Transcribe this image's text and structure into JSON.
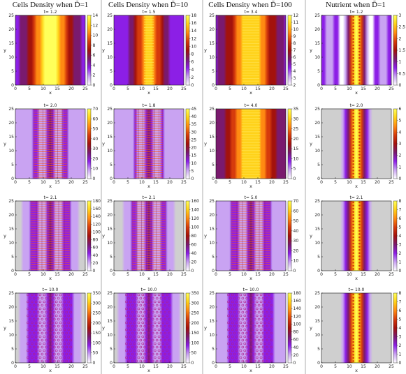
{
  "columns": [
    {
      "title": "Cells Density when D̃=1"
    },
    {
      "title": "Cells Density when D̃=10"
    },
    {
      "title": "Cells Density when D̃=100"
    },
    {
      "title": "Nutrient when D̃=1"
    }
  ],
  "colors": {
    "colormap": [
      "#ffffff",
      "#c9a3f2",
      "#8c1fe6",
      "#7a1a6e",
      "#a3120c",
      "#d63b0c",
      "#ff8a12",
      "#ffd21a",
      "#ffff5a"
    ],
    "background_gray": "#cfcfcf",
    "separator": "#9a9a9a"
  },
  "chart_data": [
    {
      "type": "heatmap",
      "col": 0,
      "row": 0,
      "time_label": "t= 1.2",
      "xlabel": "x",
      "ylabel": "y",
      "xlim": [
        0,
        25
      ],
      "ylim": [
        0,
        25
      ],
      "x_ticks": [
        0,
        5,
        10,
        15,
        20,
        25
      ],
      "y_ticks": [
        0,
        5,
        10,
        15,
        20,
        25
      ],
      "colorbar_ticks": [
        0,
        2,
        4,
        6,
        8,
        10,
        12,
        14
      ],
      "pattern": "smooth",
      "band_center": 12.5,
      "band_width": 4.8,
      "gray_background": false
    },
    {
      "type": "heatmap",
      "col": 1,
      "row": 0,
      "time_label": "t= 1.5",
      "xlabel": "x",
      "ylabel": "y",
      "xlim": [
        0,
        25
      ],
      "ylim": [
        0,
        25
      ],
      "x_ticks": [
        0,
        5,
        10,
        15,
        20,
        25
      ],
      "y_ticks": [
        0,
        5,
        10,
        15,
        20,
        25
      ],
      "colorbar_ticks": [
        0,
        2,
        4,
        6,
        8,
        10,
        12,
        14,
        16,
        18
      ],
      "pattern": "stripes",
      "band_center": 12.5,
      "band_width": 3.2,
      "gray_background": false
    },
    {
      "type": "heatmap",
      "col": 2,
      "row": 0,
      "time_label": "t= 3.4",
      "xlabel": "x",
      "ylabel": "y",
      "xlim": [
        0,
        25
      ],
      "ylim": [
        0,
        25
      ],
      "x_ticks": [
        0,
        5,
        10,
        15,
        20,
        25
      ],
      "y_ticks": [
        0,
        5,
        10,
        15,
        20,
        25
      ],
      "colorbar_ticks": [
        2,
        3,
        4,
        5,
        6,
        7,
        8,
        9,
        10,
        11,
        12
      ],
      "pattern": "stripes",
      "band_center": 12.5,
      "band_width": 5.5,
      "gray_background": false
    },
    {
      "type": "heatmap",
      "col": 3,
      "row": 0,
      "time_label": "t= 1.2",
      "xlabel": "x",
      "ylabel": "y",
      "xlim": [
        0,
        25
      ],
      "ylim": [
        0,
        25
      ],
      "x_ticks": [
        0,
        5,
        10,
        15,
        20,
        25
      ],
      "y_ticks": [
        0,
        5,
        10,
        15,
        20,
        25
      ],
      "colorbar_ticks": [
        0,
        0.5,
        1,
        1.5,
        2,
        2.5,
        3
      ],
      "pattern": "nutrient",
      "band_center": 12.5,
      "band_width": 2.0,
      "gray_background": false
    },
    {
      "type": "heatmap",
      "col": 0,
      "row": 1,
      "time_label": "t= 2.0",
      "xlabel": "x",
      "ylabel": "y",
      "xlim": [
        0,
        25
      ],
      "ylim": [
        0,
        25
      ],
      "x_ticks": [
        0,
        5,
        10,
        15,
        20,
        25
      ],
      "y_ticks": [
        0,
        5,
        10,
        15,
        20,
        25
      ],
      "colorbar_ticks": [
        0,
        10,
        20,
        30,
        40,
        50,
        60,
        70
      ],
      "pattern": "cells",
      "band_center": 12.5,
      "band_width": 6,
      "gray_background": false
    },
    {
      "type": "heatmap",
      "col": 1,
      "row": 1,
      "time_label": "t= 1.8",
      "xlabel": "x",
      "ylabel": "y",
      "xlim": [
        0,
        25
      ],
      "ylim": [
        0,
        25
      ],
      "x_ticks": [
        0,
        5,
        10,
        15,
        20,
        25
      ],
      "y_ticks": [
        0,
        5,
        10,
        15,
        20,
        25
      ],
      "colorbar_ticks": [
        0,
        5,
        10,
        15,
        20,
        25,
        30,
        35,
        40,
        45
      ],
      "pattern": "cells",
      "band_center": 12.5,
      "band_width": 5,
      "gray_background": false
    },
    {
      "type": "heatmap",
      "col": 2,
      "row": 1,
      "time_label": "t= 4.0",
      "xlabel": "x",
      "ylabel": "y",
      "xlim": [
        0,
        25
      ],
      "ylim": [
        0,
        25
      ],
      "x_ticks": [
        0,
        5,
        10,
        15,
        20,
        25
      ],
      "y_ticks": [
        0,
        5,
        10,
        15,
        20,
        25
      ],
      "colorbar_ticks": [
        0,
        5,
        10,
        15,
        20,
        25,
        30,
        35
      ],
      "pattern": "stripes",
      "band_center": 12.5,
      "band_width": 6,
      "gray_background": false
    },
    {
      "type": "heatmap",
      "col": 3,
      "row": 1,
      "time_label": "t= 2.0",
      "xlabel": "x",
      "ylabel": "y",
      "xlim": [
        0,
        25
      ],
      "ylim": [
        0,
        25
      ],
      "x_ticks": [
        0,
        5,
        10,
        15,
        20,
        25
      ],
      "y_ticks": [
        0,
        5,
        10,
        15,
        20,
        25
      ],
      "colorbar_ticks": [
        0,
        1,
        2,
        3,
        4,
        5,
        6
      ],
      "pattern": "nutrient",
      "band_center": 12.5,
      "band_width": 2.2,
      "gray_background": true
    },
    {
      "type": "heatmap",
      "col": 0,
      "row": 2,
      "time_label": "t= 2.1",
      "xlabel": "x",
      "ylabel": "y",
      "xlim": [
        0,
        25
      ],
      "ylim": [
        0,
        25
      ],
      "x_ticks": [
        0,
        5,
        10,
        15,
        20,
        25
      ],
      "y_ticks": [
        0,
        5,
        10,
        15,
        20,
        25
      ],
      "colorbar_ticks": [
        0,
        20,
        40,
        60,
        80,
        100,
        120,
        140,
        160,
        180
      ],
      "pattern": "cells",
      "band_center": 12.5,
      "band_width": 7,
      "gray_background": true
    },
    {
      "type": "heatmap",
      "col": 1,
      "row": 2,
      "time_label": "t= 2.1",
      "xlabel": "x",
      "ylabel": "y",
      "xlim": [
        0,
        25
      ],
      "ylim": [
        0,
        25
      ],
      "x_ticks": [
        0,
        5,
        10,
        15,
        20,
        25
      ],
      "y_ticks": [
        0,
        5,
        10,
        15,
        20,
        25
      ],
      "colorbar_ticks": [
        0,
        20,
        40,
        60,
        80,
        100,
        120,
        140,
        160
      ],
      "pattern": "cells",
      "band_center": 12.5,
      "band_width": 6,
      "gray_background": true
    },
    {
      "type": "heatmap",
      "col": 2,
      "row": 2,
      "time_label": "t= 5.0",
      "xlabel": "x",
      "ylabel": "y",
      "xlim": [
        0,
        25
      ],
      "ylim": [
        0,
        25
      ],
      "x_ticks": [
        0,
        5,
        10,
        15,
        20,
        25
      ],
      "y_ticks": [
        0,
        5,
        10,
        15,
        20,
        25
      ],
      "colorbar_ticks": [
        0,
        10,
        20,
        30,
        40,
        50,
        60,
        70
      ],
      "pattern": "cells",
      "band_center": 12.5,
      "band_width": 7,
      "gray_background": false
    },
    {
      "type": "heatmap",
      "col": 3,
      "row": 2,
      "time_label": "t= 2.1",
      "xlabel": "x",
      "ylabel": "y",
      "xlim": [
        0,
        25
      ],
      "ylim": [
        0,
        25
      ],
      "x_ticks": [
        0,
        5,
        10,
        15,
        20,
        25
      ],
      "y_ticks": [
        0,
        5,
        10,
        15,
        20,
        25
      ],
      "colorbar_ticks": [
        0,
        1,
        2,
        3,
        4,
        5,
        6,
        7,
        8
      ],
      "pattern": "nutrient",
      "band_center": 12.5,
      "band_width": 2.2,
      "gray_background": true
    },
    {
      "type": "heatmap",
      "col": 0,
      "row": 3,
      "time_label": "t= 10.0",
      "xlabel": "x",
      "ylabel": "y",
      "xlim": [
        0,
        25
      ],
      "ylim": [
        0,
        25
      ],
      "x_ticks": [
        0,
        5,
        10,
        15,
        20,
        25
      ],
      "y_ticks": [
        0,
        5,
        10,
        15,
        20,
        25
      ],
      "colorbar_ticks": [
        0,
        50,
        100,
        150,
        200,
        250,
        300,
        350
      ],
      "pattern": "dots",
      "band_center": 12.5,
      "band_width": 8,
      "gray_background": true
    },
    {
      "type": "heatmap",
      "col": 1,
      "row": 3,
      "time_label": "t= 10.0",
      "xlabel": "x",
      "ylabel": "y",
      "xlim": [
        0,
        25
      ],
      "ylim": [
        0,
        25
      ],
      "x_ticks": [
        0,
        5,
        10,
        15,
        20,
        25
      ],
      "y_ticks": [
        0,
        5,
        10,
        15,
        20,
        25
      ],
      "colorbar_ticks": [
        0,
        50,
        100,
        150,
        200,
        250,
        300,
        350
      ],
      "pattern": "dots",
      "band_center": 12.5,
      "band_width": 8,
      "gray_background": true
    },
    {
      "type": "heatmap",
      "col": 2,
      "row": 3,
      "time_label": "t= 10.0",
      "xlabel": "x",
      "ylabel": "y",
      "xlim": [
        0,
        25
      ],
      "ylim": [
        0,
        25
      ],
      "x_ticks": [
        0,
        5,
        10,
        15,
        20,
        25
      ],
      "y_ticks": [
        0,
        5,
        10,
        15,
        20,
        25
      ],
      "colorbar_ticks": [
        0,
        20,
        40,
        60,
        80,
        100,
        120,
        140,
        160,
        180
      ],
      "pattern": "dots",
      "band_center": 12.5,
      "band_width": 8,
      "gray_background": false
    },
    {
      "type": "heatmap",
      "col": 3,
      "row": 3,
      "time_label": "t= 10.0",
      "xlabel": "x",
      "ylabel": "y",
      "xlim": [
        0,
        25
      ],
      "ylim": [
        0,
        25
      ],
      "x_ticks": [
        0,
        5,
        10,
        15,
        20,
        25
      ],
      "y_ticks": [
        0,
        5,
        10,
        15,
        20,
        25
      ],
      "colorbar_ticks": [
        0,
        1,
        2,
        3,
        4,
        5,
        6,
        7,
        8
      ],
      "pattern": "nutrient",
      "band_center": 12.5,
      "band_width": 2.2,
      "gray_background": true
    }
  ]
}
